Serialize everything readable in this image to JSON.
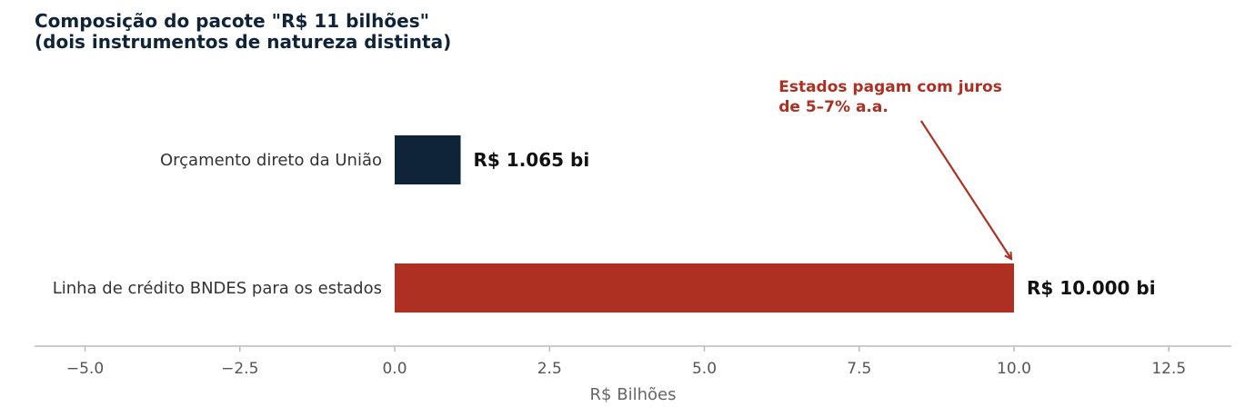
{
  "title_lines": [
    "Composição do pacote \"R$ 11 bilhões\"",
    "(dois instrumentos de natureza distinta)"
  ],
  "colors": {
    "title": "#0f2438",
    "bar_navy": "#0f2438",
    "bar_red": "#ad3022",
    "annotation": "#ad3022",
    "axis": "#bbbbbb"
  },
  "chart_data": {
    "type": "bar",
    "orientation": "horizontal",
    "categories": [
      "Orçamento direto da União",
      "Linha de crédito BNDES para os estados"
    ],
    "values": [
      1.065,
      10.0
    ],
    "value_labels": [
      "R$ 1.065 bi",
      "R$ 10.000 bi"
    ],
    "bar_colors": [
      "#0f2438",
      "#ad3022"
    ],
    "xlabel": "R$ Bilhões",
    "xlim": [
      -5.8,
      13.5
    ],
    "xticks": [
      -5.0,
      -2.5,
      0.0,
      2.5,
      5.0,
      7.5,
      10.0,
      12.5
    ],
    "xtick_labels": [
      "−5.0",
      "−2.5",
      "0.0",
      "2.5",
      "5.0",
      "7.5",
      "10.0",
      "12.5"
    ],
    "grid": false,
    "annotation": {
      "lines": [
        "Estados pagam com juros",
        "de 5–7% a.a."
      ],
      "text_x": 6.2,
      "arrow_from_x": 8.5,
      "arrow_to": {
        "x": 10.0,
        "category": "Linha de crédito BNDES para os estados"
      }
    }
  }
}
